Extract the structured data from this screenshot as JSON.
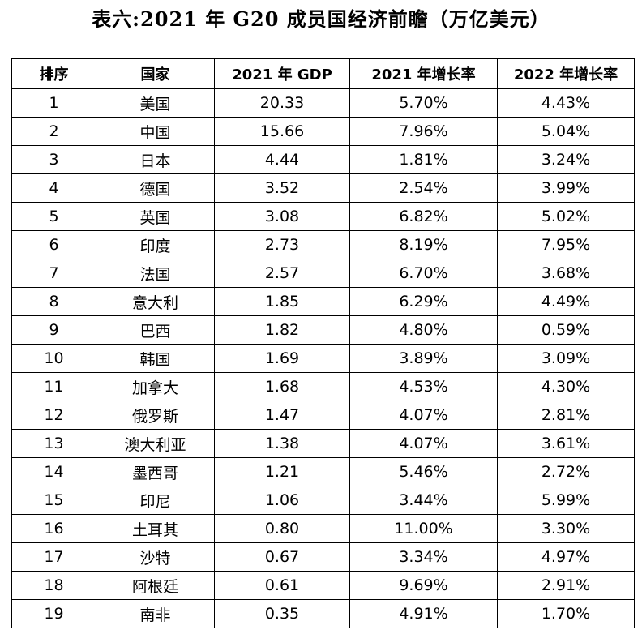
{
  "title": "表六:2021 年 G20 成员国经济前瞻（万亿美元）",
  "table": {
    "headers": [
      "排序",
      "国家",
      "2021 年 GDP",
      "2021 年增长率",
      "2022 年增长率"
    ],
    "rows": [
      [
        "1",
        "美国",
        "20.33",
        "5.70%",
        "4.43%"
      ],
      [
        "2",
        "中国",
        "15.66",
        "7.96%",
        "5.04%"
      ],
      [
        "3",
        "日本",
        "4.44",
        "1.81%",
        "3.24%"
      ],
      [
        "4",
        "德国",
        "3.52",
        "2.54%",
        "3.99%"
      ],
      [
        "5",
        "英国",
        "3.08",
        "6.82%",
        "5.02%"
      ],
      [
        "6",
        "印度",
        "2.73",
        "8.19%",
        "7.95%"
      ],
      [
        "7",
        "法国",
        "2.57",
        "6.70%",
        "3.68%"
      ],
      [
        "8",
        "意大利",
        "1.85",
        "6.29%",
        "4.49%"
      ],
      [
        "9",
        "巴西",
        "1.82",
        "4.80%",
        "0.59%"
      ],
      [
        "10",
        "韩国",
        "1.69",
        "3.89%",
        "3.09%"
      ],
      [
        "11",
        "加拿大",
        "1.68",
        "4.53%",
        "4.30%"
      ],
      [
        "12",
        "俄罗斯",
        "1.47",
        "4.07%",
        "2.81%"
      ],
      [
        "13",
        "澳大利亚",
        "1.38",
        "4.07%",
        "3.61%"
      ],
      [
        "14",
        "墨西哥",
        "1.21",
        "5.46%",
        "2.72%"
      ],
      [
        "15",
        "印尼",
        "1.06",
        "3.44%",
        "5.99%"
      ],
      [
        "16",
        "土耳其",
        "0.80",
        "11.00%",
        "3.30%"
      ],
      [
        "17",
        "沙特",
        "0.67",
        "3.34%",
        "4.97%"
      ],
      [
        "18",
        "阿根廷",
        "0.61",
        "9.69%",
        "2.91%"
      ],
      [
        "19",
        "南非",
        "0.35",
        "4.91%",
        "1.70%"
      ]
    ]
  }
}
